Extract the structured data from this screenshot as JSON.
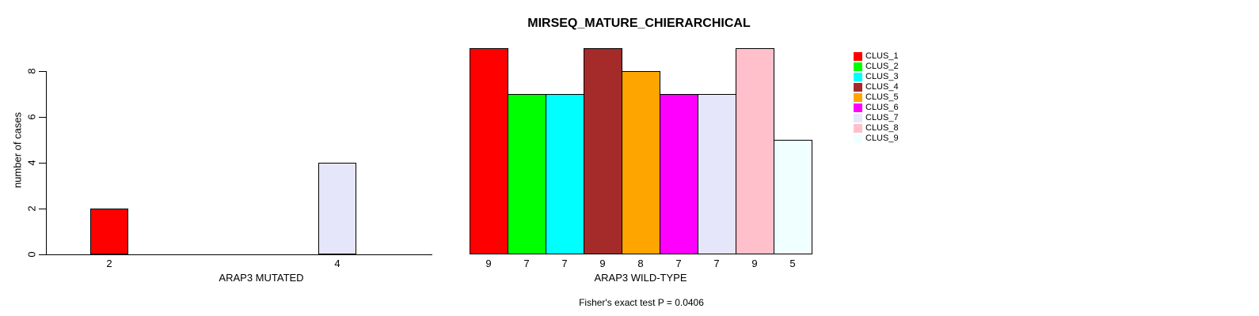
{
  "title": "MIRSEQ_MATURE_CHIERARCHICAL",
  "ylabel": "number of cases",
  "footer": {
    "fisher_text": "Fisher's exact test P = 0.0406"
  },
  "chart_data": [
    {
      "type": "bar",
      "name": "arap3-mutated",
      "xlabel": "ARAP3 MUTATED",
      "ylabel": "number of cases",
      "categories": [
        "CLUS_1",
        "CLUS_7"
      ],
      "values": [
        2,
        4
      ],
      "bar_labels": [
        "2",
        "4"
      ],
      "colors": [
        "#FF0000",
        "#E6E6FA"
      ],
      "yticks": [
        0,
        2,
        4,
        6,
        8
      ],
      "ylim": [
        0,
        9
      ],
      "grid": false
    },
    {
      "type": "bar",
      "name": "arap3-wild-type",
      "xlabel": "ARAP3 WILD-TYPE",
      "ylabel": "number of cases",
      "categories": [
        "CLUS_1",
        "CLUS_2",
        "CLUS_3",
        "CLUS_4",
        "CLUS_5",
        "CLUS_6",
        "CLUS_7",
        "CLUS_8",
        "CLUS_9"
      ],
      "values": [
        9,
        7,
        7,
        9,
        8,
        7,
        7,
        9,
        5
      ],
      "bar_labels": [
        "9",
        "7",
        "7",
        "9",
        "8",
        "7",
        "7",
        "9",
        "5"
      ],
      "colors": [
        "#FF0000",
        "#00FF00",
        "#00FFFF",
        "#A52A2A",
        "#FFA500",
        "#FF00FF",
        "#E6E6FA",
        "#FFC0CB",
        "#F0FFFF"
      ],
      "ylim": [
        0,
        9
      ],
      "grid": false
    }
  ],
  "legend": {
    "position": "right",
    "items": [
      {
        "label": "CLUS_1",
        "color": "#FF0000"
      },
      {
        "label": "CLUS_2",
        "color": "#00FF00"
      },
      {
        "label": "CLUS_3",
        "color": "#00FFFF"
      },
      {
        "label": "CLUS_4",
        "color": "#A52A2A"
      },
      {
        "label": "CLUS_5",
        "color": "#FFA500"
      },
      {
        "label": "CLUS_6",
        "color": "#FF00FF"
      },
      {
        "label": "CLUS_7",
        "color": "#E6E6FA"
      },
      {
        "label": "CLUS_8",
        "color": "#FFC0CB"
      },
      {
        "label": "CLUS_9",
        "color": "#F0FFFF"
      }
    ]
  }
}
